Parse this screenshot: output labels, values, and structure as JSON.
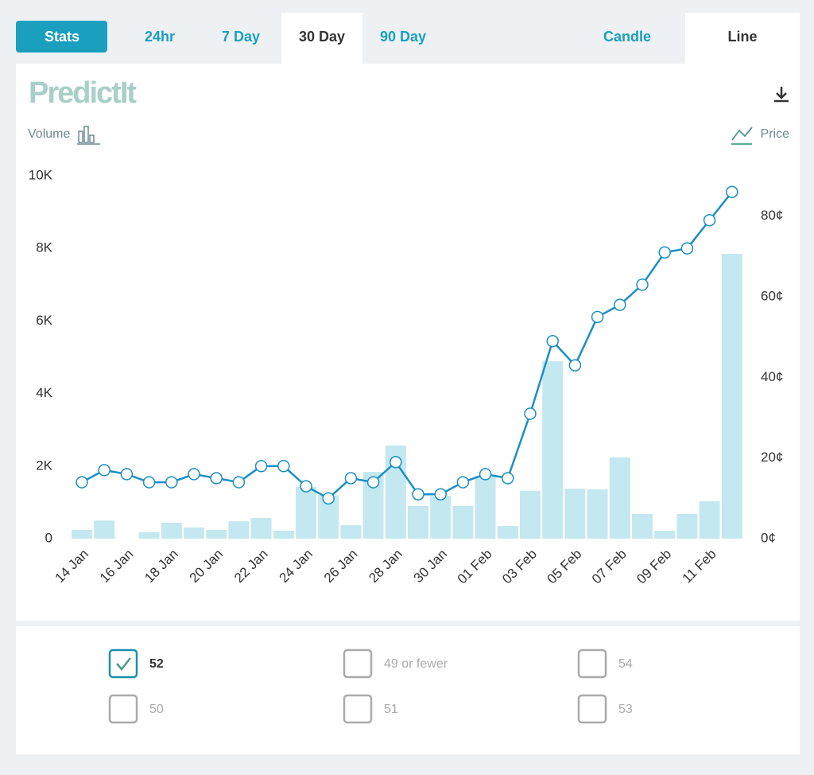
{
  "toolbar": {
    "stats_button": "Stats",
    "tabs": [
      {
        "label": "24hr",
        "active": false
      },
      {
        "label": "7 Day",
        "active": false
      },
      {
        "label": "30 Day",
        "active": true
      },
      {
        "label": "90 Day",
        "active": false
      }
    ],
    "chart_types": [
      {
        "label": "Candle",
        "active": false
      },
      {
        "label": "Line",
        "active": true
      }
    ]
  },
  "logo": "PredictIt",
  "chart_data": {
    "type": "bar_line",
    "categories": [
      "14 Jan",
      null,
      "16 Jan",
      null,
      "18 Jan",
      null,
      "20 Jan",
      null,
      "22 Jan",
      null,
      "24 Jan",
      null,
      "26 Jan",
      null,
      "28 Jan",
      null,
      "30 Jan",
      null,
      "01 Feb",
      null,
      "03 Feb",
      null,
      "05 Feb",
      null,
      "07 Feb",
      null,
      "09 Feb",
      null,
      "11 Feb",
      null
    ],
    "series": [
      {
        "name": "Volume",
        "type": "bar",
        "axis": "y",
        "color": "#c3e8f0",
        "values": [
          240,
          500,
          0,
          180,
          440,
          310,
          240,
          480,
          570,
          220,
          1430,
          1200,
          370,
          1840,
          2570,
          900,
          1180,
          900,
          1730,
          350,
          1320,
          4890,
          1380,
          1360,
          2240,
          680,
          220,
          680,
          1030,
          7850
        ]
      },
      {
        "name": "Price",
        "type": "line",
        "axis": "y2",
        "color": "#1b8fc4",
        "values": [
          14,
          17,
          16,
          14,
          14,
          16,
          15,
          14,
          18,
          18,
          13,
          10,
          15,
          14,
          19,
          11,
          11,
          14,
          16,
          15,
          31,
          49,
          43,
          55,
          58,
          63,
          71,
          72,
          79,
          86
        ]
      }
    ],
    "ylim": [
      0,
      10000
    ],
    "yticks": [
      0,
      {
        "value": 2000,
        "label": "2K"
      },
      {
        "value": 4000,
        "label": "4K"
      },
      {
        "value": 6000,
        "label": "6K"
      },
      {
        "value": 8000,
        "label": "8K"
      },
      {
        "value": 10000,
        "label": "10K"
      }
    ],
    "y2lim": [
      0,
      90
    ],
    "y2ticks": [
      {
        "value": 0,
        "label": "0¢"
      },
      {
        "value": 20,
        "label": "20¢"
      },
      {
        "value": 40,
        "label": "40¢"
      },
      {
        "value": 60,
        "label": "60¢"
      },
      {
        "value": 80,
        "label": "80¢"
      }
    ],
    "grid": false
  },
  "options": [
    {
      "label": "52",
      "checked": true
    },
    {
      "label": "49 or fewer",
      "checked": false
    },
    {
      "label": "54",
      "checked": false
    },
    {
      "label": "50",
      "checked": false
    },
    {
      "label": "51",
      "checked": false
    },
    {
      "label": "53",
      "checked": false
    }
  ]
}
